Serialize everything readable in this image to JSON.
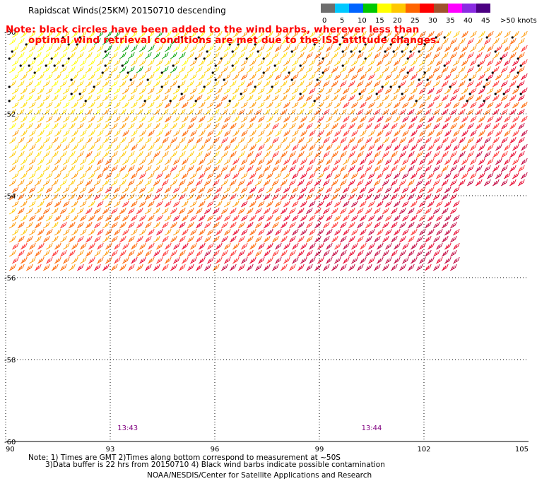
{
  "title": "Rapidscat Winds(25KM) 20150710 descending",
  "note_line1": "Note: black circles have been added to the wind barbs, wherever less than",
  "note_line2": "optimal wind retrieval conditions are met due to the ISS attitude changes.",
  "legend": {
    "unit": ">50 knots",
    "ticks": [
      "0",
      "5",
      "10",
      "15",
      "20",
      "25",
      "30",
      "35",
      "40",
      "45"
    ],
    "colors": [
      "#6e6e6e",
      "#00c8ff",
      "#0064ff",
      "#00c800",
      "#ffff00",
      "#ffc800",
      "#ff6400",
      "#ff0000",
      "#a0522d",
      "#ff00ff",
      "#8a2be2",
      "#4b0082"
    ]
  },
  "map": {
    "lat_labels": [
      "-50",
      "-52",
      "-54",
      "-56",
      "-58",
      "-60"
    ],
    "lon_labels": [
      "90",
      "93",
      "96",
      "99",
      "102",
      "105"
    ],
    "lon_range": [
      90,
      105
    ],
    "lat_range": [
      -60,
      -50
    ],
    "time_labels": [
      {
        "text": "13:43",
        "lon": 93.5
      },
      {
        "text": "13:44",
        "lon": 100.5
      }
    ],
    "time_label_color": "#800080",
    "data_extent": {
      "lon": [
        90,
        105
      ],
      "lat_top": -50,
      "lat_bottom_main": -55.9,
      "lat_bottom_east": -53.8,
      "east_cut_lon": 102.8
    }
  },
  "footnotes": {
    "line1": "Note: 1) Times are GMT 2)Times along bottom correspond to measurement at ~50S",
    "line2": "3)Data buffer is 22 hrs from 20150710 4) Black wind barbs indicate possible contamination",
    "line3": "NOAA/NESDIS/Center for Satellite Applications and Research"
  }
}
